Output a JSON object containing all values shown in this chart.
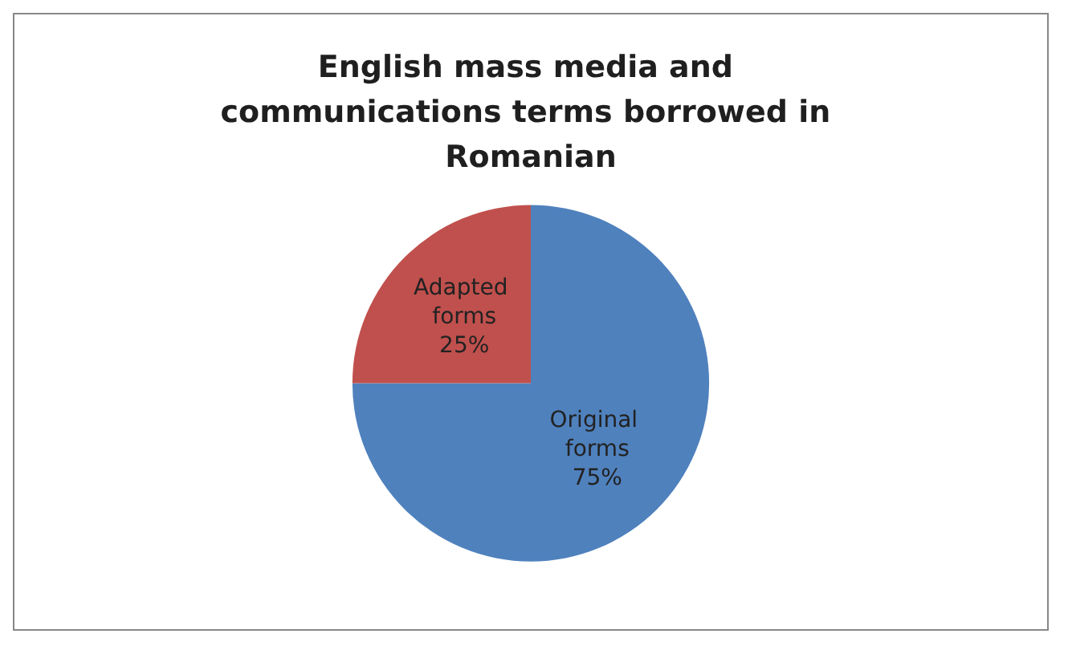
{
  "chart_data": {
    "type": "pie",
    "title": "English mass media and communications terms borrowed in Romanian",
    "categories": [
      "Original forms",
      "Adapted forms"
    ],
    "values": [
      75,
      25
    ],
    "colors": [
      "#4f81bd",
      "#c0504d"
    ],
    "value_labels": [
      "75%",
      "25%"
    ],
    "legend": false
  }
}
